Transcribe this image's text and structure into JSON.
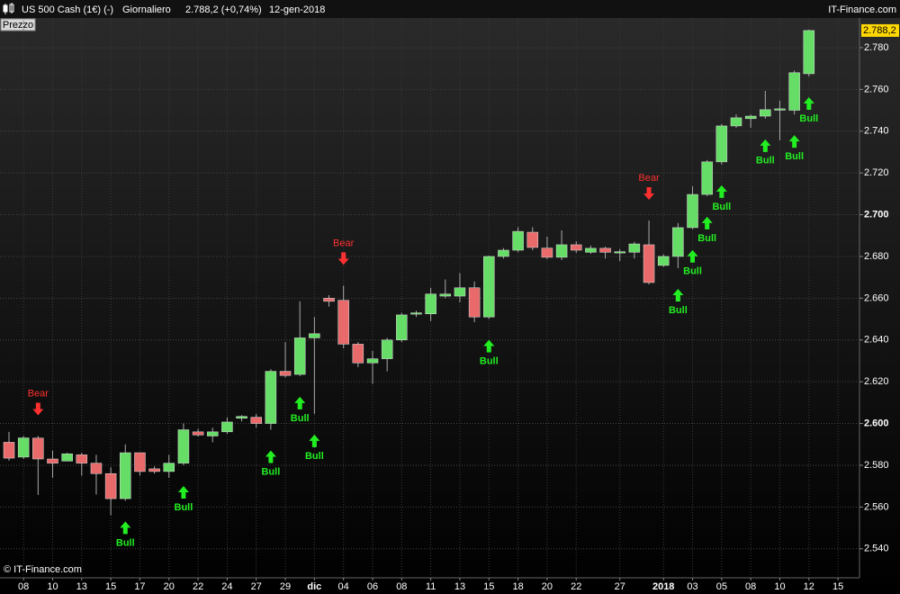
{
  "chart_data": {
    "type": "candlestick",
    "title": "US 500 Cash (1€) (-)",
    "period": "Giornaliero",
    "quote": "2.788,2 (+0,74%)",
    "date": "12-gen-2018",
    "source": "IT-Finance.com",
    "panel_label": "Prezzo",
    "copyright": "© IT-Finance.com",
    "categories": [
      null,
      "08",
      null,
      "10",
      null,
      "13",
      null,
      "15",
      null,
      "17",
      null,
      "20",
      null,
      "22",
      null,
      "24",
      null,
      "27",
      null,
      "29",
      null,
      "dic",
      null,
      "04",
      null,
      "06",
      null,
      "08",
      null,
      "11",
      null,
      "13",
      null,
      "15",
      null,
      "18",
      null,
      "20",
      null,
      "22",
      null,
      null,
      "27",
      null,
      null,
      "2018",
      null,
      "03",
      null,
      "05",
      null,
      "08",
      null,
      "10",
      null,
      "12",
      null,
      "15"
    ],
    "open": [
      2591,
      2583.9,
      2593,
      2583,
      2582,
      2585,
      2581,
      2576,
      2564,
      2586,
      2578.3,
      2577,
      2581,
      2596,
      2594,
      2596,
      2602.5,
      2603,
      2600,
      2625,
      2623.5,
      2641,
      2660,
      2659,
      2638,
      2629,
      2631,
      2640,
      2652.4,
      2652.5,
      2661,
      2661,
      2665,
      2651,
      2680,
      2683,
      2691.6,
      2684,
      2679.6,
      2685.6,
      2682,
      2683.9,
      2681.9,
      2682,
      2685.6,
      2675.7,
      2680,
      2693.8,
      2709.7,
      2725.3,
      2742.5,
      2746,
      2747.2,
      2750.3,
      2750,
      2767.5,
      null,
      null
    ],
    "high": [
      2596,
      2594,
      2594,
      2587,
      2586,
      2586,
      2585,
      2579,
      2590,
      2586,
      2579.5,
      2585,
      2600,
      2597.5,
      2598,
      2603,
      2604,
      2604.6,
      2626,
      2639,
      2658.5,
      2651,
      2661.5,
      2666,
      2639,
      2634.7,
      2641,
      2653,
      2654,
      2665,
      2669,
      2672,
      2668,
      2680.4,
      2684,
      2694,
      2694,
      2689.5,
      2692.5,
      2687.3,
      2685.2,
      2684.7,
      2683.5,
      2687,
      2697.2,
      2681,
      2696,
      2713.6,
      2726.2,
      2743.4,
      2748,
      2748,
      2759.3,
      2754.6,
      2769,
      2788.6,
      null,
      null
    ],
    "low": [
      2582.2,
      2583,
      2565.8,
      2574,
      2582,
      2575,
      2566,
      2556,
      2563,
      2575,
      2576,
      2574,
      2580,
      2593.8,
      2591,
      2595,
      2601,
      2598,
      2597,
      2622,
      2622.7,
      2604.6,
      2656,
      2636,
      2627,
      2619,
      2625,
      2639,
      2651,
      2649,
      2660,
      2658,
      2648.5,
      2650,
      2679,
      2682,
      2683,
      2678.7,
      2678.3,
      2681.7,
      2681.3,
      2679,
      2677.8,
      2679,
      2666.6,
      2675,
      2674.4,
      2693,
      2708.9,
      2724,
      2741.6,
      2741.6,
      2746,
      2735.6,
      2748,
      2766.2,
      null,
      null
    ],
    "close": [
      2583.4,
      2593.1,
      2583,
      2581,
      2585.5,
      2581,
      2576,
      2564,
      2586,
      2577,
      2577,
      2581,
      2597,
      2594.5,
      2596,
      2600.7,
      2603.4,
      2600,
      2625,
      2623,
      2641,
      2643,
      2658.5,
      2638,
      2629,
      2631,
      2640,
      2652,
      2653,
      2662,
      2662,
      2665,
      2651,
      2680,
      2683,
      2692,
      2684.3,
      2679.6,
      2685.6,
      2683,
      2683.9,
      2682,
      2682.3,
      2686,
      2667.5,
      2680,
      2693.8,
      2709.7,
      2725.3,
      2742.5,
      2746.4,
      2747.2,
      2750.3,
      2750.7,
      2768,
      2788.2,
      null,
      null
    ],
    "signals": [
      null,
      null,
      "Bear",
      null,
      null,
      null,
      null,
      null,
      "Bull",
      null,
      null,
      null,
      "Bull",
      null,
      null,
      null,
      null,
      null,
      "Bull",
      null,
      "Bull",
      "Bull",
      null,
      "Bear",
      null,
      null,
      null,
      null,
      null,
      null,
      null,
      null,
      null,
      "Bull",
      null,
      null,
      null,
      null,
      null,
      null,
      null,
      null,
      null,
      null,
      "Bear",
      null,
      "Bull",
      "Bull",
      "Bull",
      "Bull",
      null,
      null,
      "Bull",
      null,
      "Bull",
      "Bull",
      null,
      null
    ],
    "up_color": "#66dd66",
    "down_color": "#e86a6a",
    "bull_color": "#22ee22",
    "bear_color": "#ff3030",
    "last": {
      "value": 2788.2,
      "label": "2.788,2"
    },
    "ylim": [
      2526.1,
      2794.2
    ],
    "yticks": [
      {
        "value": 2540,
        "label": "2.540"
      },
      {
        "value": 2560,
        "label": "2.560"
      },
      {
        "value": 2580,
        "label": "2.580"
      },
      {
        "value": 2600,
        "label": "2.600"
      },
      {
        "value": 2620,
        "label": "2.620"
      },
      {
        "value": 2640,
        "label": "2.640"
      },
      {
        "value": 2660,
        "label": "2.660"
      },
      {
        "value": 2680,
        "label": "2.680"
      },
      {
        "value": 2700,
        "label": "2.700"
      },
      {
        "value": 2720,
        "label": "2.720"
      },
      {
        "value": 2740,
        "label": "2.740"
      },
      {
        "value": 2760,
        "label": "2.760"
      },
      {
        "value": 2780,
        "label": "2.780"
      }
    ],
    "grid": true
  }
}
